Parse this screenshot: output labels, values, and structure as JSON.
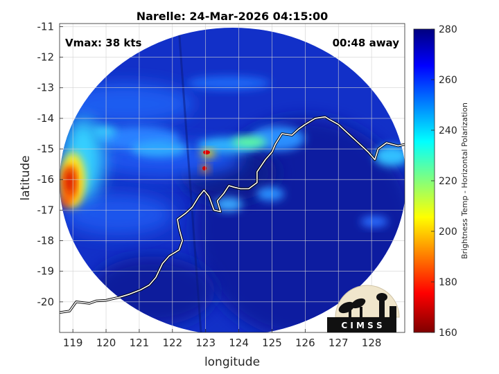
{
  "title": "Narelle: 24-Mar-2026 04:15:00",
  "vmax_label": "Vmax: 38 kts",
  "time_away_label": "00:48 away",
  "logo_text": "C I M S S",
  "chart_data": {
    "type": "heatmap",
    "xlabel": "longitude",
    "ylabel": "latitude",
    "xlim": [
      118.6,
      129.0
    ],
    "ylim": [
      -21.0,
      -10.9
    ],
    "xticks": [
      119,
      120,
      121,
      122,
      123,
      124,
      125,
      126,
      127,
      128
    ],
    "yticks": [
      -11,
      -12,
      -13,
      -14,
      -15,
      -16,
      -17,
      -18,
      -19,
      -20
    ],
    "grid": true,
    "colorbar": {
      "label": "Brightness Temp - Horizontal Polarization",
      "min": 160,
      "max": 280,
      "ticks": [
        280,
        260,
        240,
        220,
        200,
        180,
        160
      ],
      "placement": "right"
    },
    "swath_center": [
      123.7,
      -15.95
    ],
    "features": [
      {
        "name": "warm band west edge",
        "lon": 119.0,
        "lat": -16.1,
        "value": 178
      },
      {
        "name": "convective core",
        "lon": 123.1,
        "lat": -15.0,
        "value": 192
      },
      {
        "name": "inner band",
        "lon": 122.9,
        "lat": -15.6,
        "value": 198
      },
      {
        "name": "outer band",
        "lon": 120.4,
        "lat": -14.3,
        "value": 232
      },
      {
        "name": "northern band",
        "lon": 123.5,
        "lat": -14.9,
        "value": 236
      }
    ],
    "coastline": [
      [
        118.6,
        -20.35
      ],
      [
        118.9,
        -20.3
      ],
      [
        119.1,
        -20.0
      ],
      [
        119.5,
        -20.05
      ],
      [
        119.7,
        -19.97
      ],
      [
        120.0,
        -19.95
      ],
      [
        120.4,
        -19.85
      ],
      [
        120.7,
        -19.75
      ],
      [
        121.05,
        -19.6
      ],
      [
        121.3,
        -19.45
      ],
      [
        121.5,
        -19.2
      ],
      [
        121.7,
        -18.75
      ],
      [
        121.9,
        -18.5
      ],
      [
        122.2,
        -18.3
      ],
      [
        122.3,
        -18.0
      ],
      [
        122.2,
        -17.6
      ],
      [
        122.15,
        -17.3
      ],
      [
        122.4,
        -17.1
      ],
      [
        122.6,
        -16.9
      ],
      [
        122.8,
        -16.55
      ],
      [
        122.95,
        -16.35
      ],
      [
        123.1,
        -16.55
      ],
      [
        123.25,
        -17.0
      ],
      [
        123.45,
        -17.05
      ],
      [
        123.35,
        -16.7
      ],
      [
        123.55,
        -16.45
      ],
      [
        123.7,
        -16.2
      ],
      [
        123.85,
        -16.25
      ],
      [
        124.05,
        -16.3
      ],
      [
        124.3,
        -16.3
      ],
      [
        124.55,
        -16.1
      ],
      [
        124.55,
        -15.75
      ],
      [
        124.8,
        -15.35
      ],
      [
        125.0,
        -15.1
      ],
      [
        125.1,
        -14.85
      ],
      [
        125.3,
        -14.5
      ],
      [
        125.6,
        -14.55
      ],
      [
        125.8,
        -14.35
      ],
      [
        126.0,
        -14.2
      ],
      [
        126.3,
        -14.0
      ],
      [
        126.6,
        -13.95
      ],
      [
        126.75,
        -14.05
      ],
      [
        127.0,
        -14.2
      ],
      [
        127.3,
        -14.5
      ],
      [
        127.6,
        -14.8
      ],
      [
        127.9,
        -15.1
      ],
      [
        128.1,
        -15.35
      ],
      [
        128.2,
        -15.0
      ],
      [
        128.45,
        -14.8
      ],
      [
        128.8,
        -14.9
      ],
      [
        129.0,
        -14.85
      ]
    ]
  }
}
